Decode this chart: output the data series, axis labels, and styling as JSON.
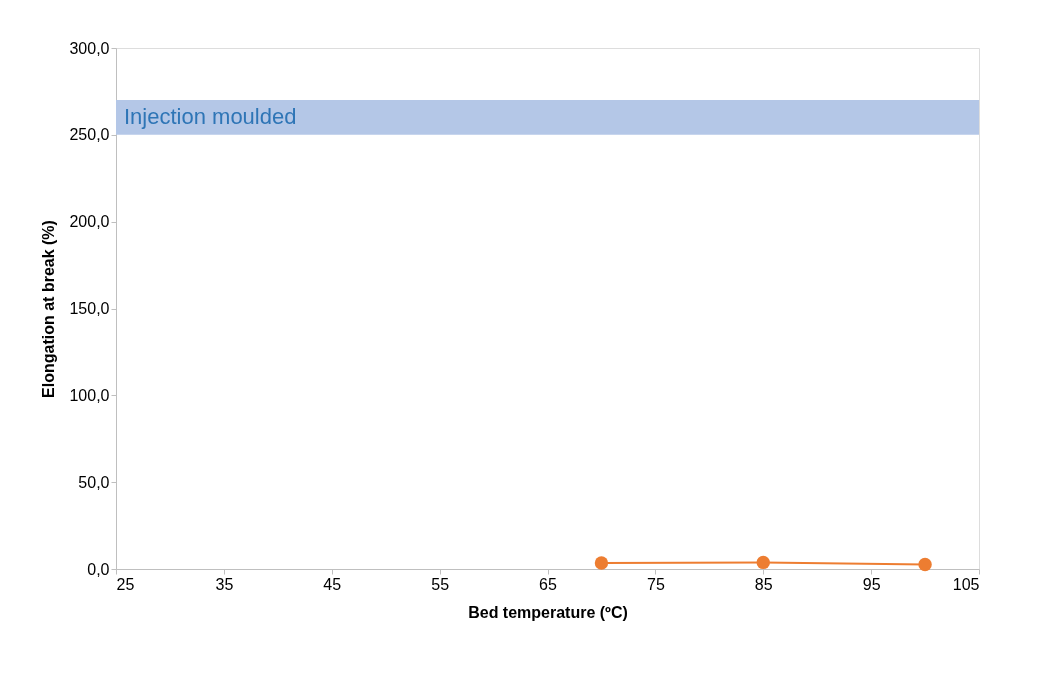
{
  "chart_data": {
    "type": "line",
    "xlabel": "Bed temperature (ºC)",
    "ylabel": "Elongation at break (%)",
    "x": [
      70,
      85,
      100
    ],
    "series": [
      {
        "color": "#ed7d31",
        "values": [
          3.5,
          3.8,
          2.6
        ]
      }
    ],
    "xlim": [
      25,
      105
    ],
    "xticks": [
      25,
      35,
      45,
      55,
      65,
      75,
      85,
      95,
      105
    ],
    "ylim": [
      0,
      300
    ],
    "yticks": [
      {
        "value": 0,
        "label": "0,0"
      },
      {
        "value": 50,
        "label": "50,0"
      },
      {
        "value": 100,
        "label": "100,0"
      },
      {
        "value": 150,
        "label": "150,0"
      },
      {
        "value": 200,
        "label": "200,0"
      },
      {
        "value": 250,
        "label": "250,0"
      },
      {
        "value": 300,
        "label": "300,0"
      }
    ],
    "bands": [
      {
        "axis": "y",
        "from": 250,
        "to": 270,
        "label": "Injection moulded",
        "color": "#b4c7e7"
      }
    ],
    "marker": "circle",
    "line_style": "solid",
    "grid": false
  }
}
